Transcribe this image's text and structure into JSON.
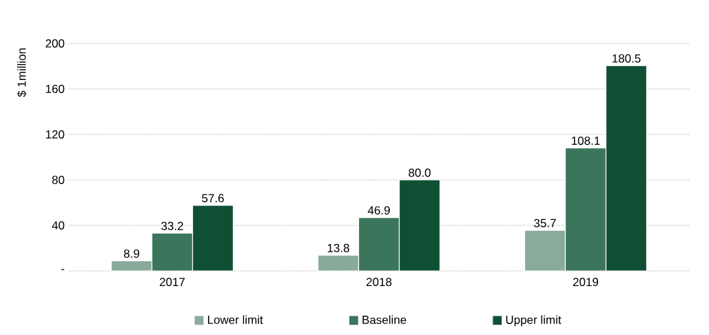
{
  "chart_data": {
    "type": "bar",
    "ylabel": "$ 1million",
    "categories": [
      "2017",
      "2018",
      "2019"
    ],
    "series": [
      {
        "name": "Lower limit",
        "color": "#8aab9c",
        "values": [
          8.9,
          13.8,
          35.7
        ],
        "value_labels": [
          "8.9",
          "13.8",
          "35.7"
        ]
      },
      {
        "name": "Baseline",
        "color": "#3b755b",
        "values": [
          33.2,
          46.9,
          108.1
        ],
        "value_labels": [
          "33.2",
          "46.9",
          "108.1"
        ]
      },
      {
        "name": "Upper limit",
        "color": "#0f5034",
        "values": [
          57.6,
          80.0,
          180.5
        ],
        "value_labels": [
          "57.6",
          "80.0",
          "180.5"
        ]
      }
    ],
    "ylim": [
      0,
      200
    ],
    "yticks": [
      {
        "value": 0,
        "label": "-"
      },
      40,
      80,
      120,
      160,
      200
    ],
    "grid": "y",
    "legend": "bottom"
  }
}
